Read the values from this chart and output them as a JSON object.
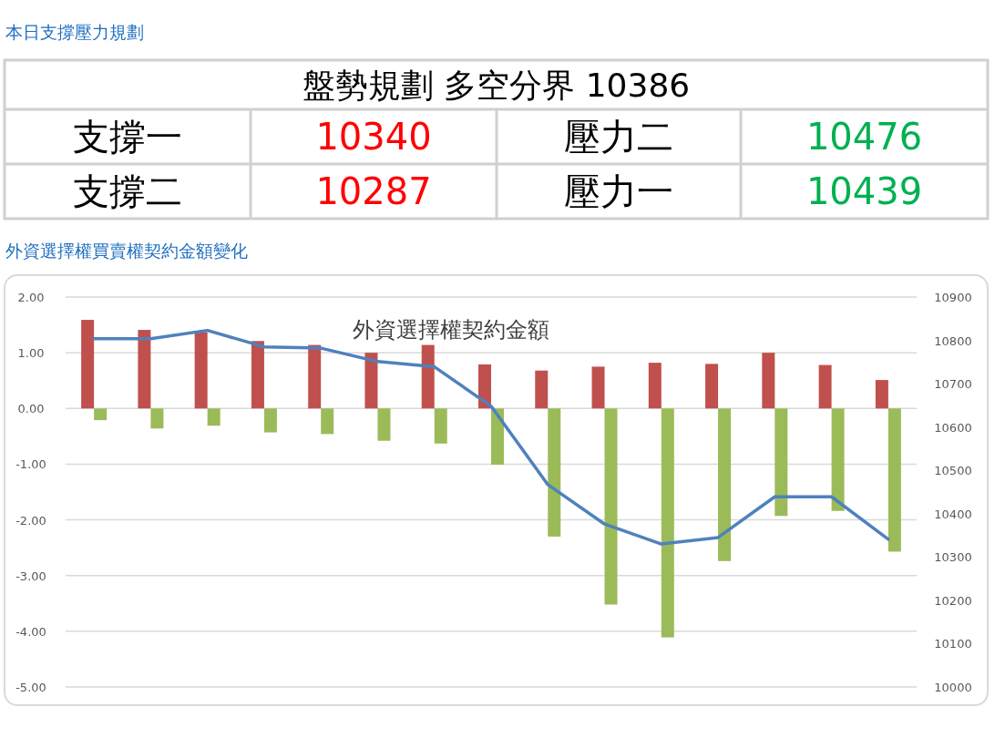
{
  "chart_data": [
    {
      "type": "other",
      "title": "本日支撐壓力規劃",
      "annotations": [
        "盤勢規劃 多空分界 10386",
        "支撐一",
        "10340",
        "壓力二",
        "10476",
        "支撐二",
        "10287",
        "壓力一",
        "10439"
      ],
      "colors": [
        "#000000",
        "#000000",
        "#ff0000",
        "#000000",
        "#00b050",
        "#000000",
        "#ff0000",
        "#000000",
        "#00b050"
      ]
    },
    {
      "type": "bar",
      "subtitle": "外資選擇權買賣權契約金額變化",
      "title": "外資選擇權契約金額",
      "categories": [
        null,
        null,
        null,
        null,
        null,
        null,
        null,
        null,
        null,
        null,
        null,
        null,
        null,
        null,
        null
      ],
      "series": [
        {
          "color": "#c0504d",
          "values": [
            1.59,
            1.41,
            1.37,
            1.21,
            1.14,
            1.0,
            1.14,
            0.79,
            0.68,
            0.75,
            0.82,
            0.8,
            1.0,
            0.78,
            0.51
          ]
        },
        {
          "color": "#9bbb59",
          "values": [
            -0.21,
            -0.36,
            -0.31,
            -0.43,
            -0.46,
            -0.58,
            -0.63,
            -1.01,
            -2.3,
            -3.52,
            -4.11,
            -2.74,
            -1.93,
            -1.84,
            -2.57
          ]
        },
        {
          "type": "line",
          "axis": "y2",
          "color": "#4f81bd",
          "values": [
            10804,
            10804,
            10823,
            10785,
            10782,
            10751,
            10739,
            10648,
            10467,
            10376,
            10330,
            10345,
            10439,
            10439,
            10341
          ]
        }
      ],
      "ylim": [
        -5,
        2
      ],
      "yticks": [
        {
          "value": 2,
          "label": "2.00"
        },
        {
          "value": 1,
          "label": "1.00"
        },
        {
          "value": 0,
          "label": "0.00"
        },
        {
          "value": -1,
          "label": "-1.00"
        },
        {
          "value": -2,
          "label": "-2.00"
        },
        {
          "value": -3,
          "label": "-3.00"
        },
        {
          "value": -4,
          "label": "-4.00"
        },
        {
          "value": -5,
          "label": "-5.00"
        }
      ],
      "y2lim": [
        10000,
        10900
      ],
      "y2ticks": [
        10000,
        10100,
        10200,
        10300,
        10400,
        10500,
        10600,
        10700,
        10800,
        10900
      ],
      "grid": "y",
      "marker": "none"
    }
  ]
}
